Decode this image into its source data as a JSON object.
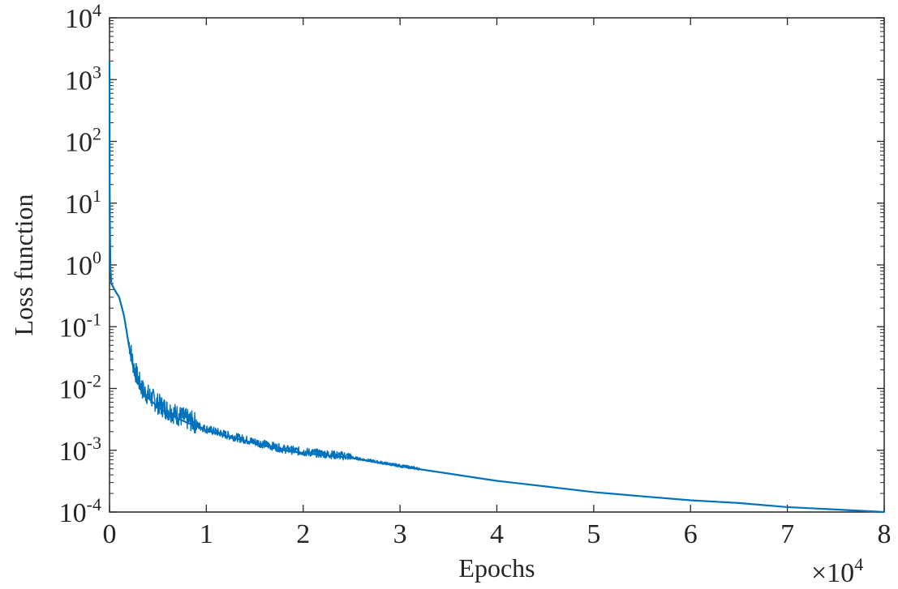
{
  "chart_data": {
    "type": "line",
    "xlabel": "Epochs",
    "ylabel": "Loss function",
    "x_multiplier_label": {
      "base": "×10",
      "exp": "4"
    },
    "x_tick_labels": [
      "0",
      "1",
      "2",
      "3",
      "4",
      "5",
      "6",
      "7",
      "8"
    ],
    "y_tick_labels": [
      {
        "base": "10",
        "exp": "-4"
      },
      {
        "base": "10",
        "exp": "-3"
      },
      {
        "base": "10",
        "exp": "-2"
      },
      {
        "base": "10",
        "exp": "-1"
      },
      {
        "base": "10",
        "exp": "0"
      },
      {
        "base": "10",
        "exp": "1"
      },
      {
        "base": "10",
        "exp": "2"
      },
      {
        "base": "10",
        "exp": "3"
      },
      {
        "base": "10",
        "exp": "4"
      }
    ],
    "xlim": [
      0,
      8
    ],
    "ylim": [
      0.0001,
      10000
    ],
    "y_scale": "log",
    "grid": false,
    "line_color": "#0072BD",
    "series": [
      {
        "x": [
          0,
          0.002,
          0.005,
          0.01,
          0.02,
          0.05,
          0.1,
          0.15,
          0.2,
          0.25,
          0.3,
          0.35,
          0.4,
          0.5,
          0.6,
          0.7,
          0.8,
          1.0,
          1.2,
          1.5,
          1.8,
          2.0,
          2.5,
          3.0,
          3.5,
          4.0,
          4.5,
          5.0,
          5.5,
          6.0,
          6.5,
          7.0,
          7.5,
          8.0
        ],
        "y": [
          2000,
          20,
          3,
          0.8,
          0.5,
          0.4,
          0.3,
          0.15,
          0.05,
          0.02,
          0.012,
          0.008,
          0.007,
          0.005,
          0.004,
          0.0033,
          0.0028,
          0.0021,
          0.0017,
          0.0013,
          0.001,
          0.0009,
          0.00075,
          0.00055,
          0.00042,
          0.00032,
          0.00026,
          0.00021,
          0.00018,
          0.000155,
          0.00014,
          0.00012,
          0.00011,
          0.0001
        ]
      }
    ]
  }
}
